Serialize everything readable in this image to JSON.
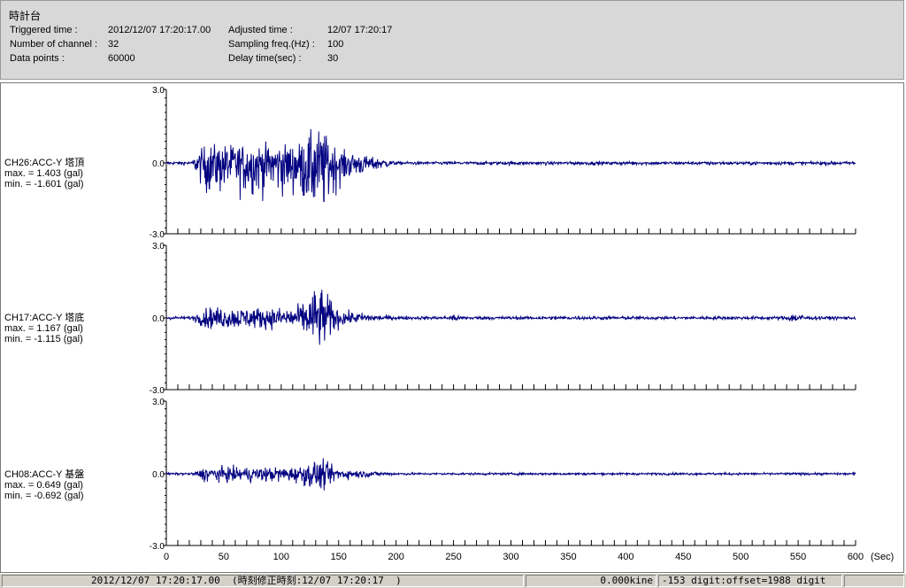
{
  "window_title": "時計台",
  "header": {
    "triggered_label": "Triggered time :",
    "triggered_value": "2012/12/07 17:20:17.00",
    "channels_label": "Number of channel :",
    "channels_value": "32",
    "points_label": "Data points :",
    "points_value": "60000",
    "adjusted_label": "Adjusted time :",
    "adjusted_value": "12/07 17:20:17",
    "sampling_label": "Sampling freq.(Hz) :",
    "sampling_value": "100",
    "delay_label": "Delay time(sec) :",
    "delay_value": "30"
  },
  "chart_data": {
    "type": "line",
    "x_unit_label": "(Sec)",
    "xlim": [
      0,
      600
    ],
    "x_ticks": [
      "0",
      "50",
      "100",
      "150",
      "200",
      "250",
      "300",
      "350",
      "400",
      "450",
      "500",
      "550",
      "600"
    ],
    "y_tick_labels": [
      "3.0",
      "0.0",
      "-3.0"
    ],
    "ylim": [
      -3.0,
      3.0
    ],
    "color": "#000080",
    "series": [
      {
        "name": "CH26:ACC-Y 塔頂",
        "max_text": "max. = 1.403 (gal)",
        "min_text": "min. = -1.601 (gal)",
        "max": 1.403,
        "min": -1.601
      },
      {
        "name": "CH17:ACC-Y 塔底",
        "max_text": "max. = 1.167 (gal)",
        "min_text": "min. = -1.115 (gal)",
        "max": 1.167,
        "min": -1.115
      },
      {
        "name": "CH08:ACC-Y 基盤",
        "max_text": "max. = 0.649 (gal)",
        "min_text": "min. = -0.692 (gal)",
        "max": 0.649,
        "min": -0.692
      }
    ]
  },
  "status": {
    "time": "2012/12/07 17:20:17.00  (時刻修正時刻:12/07 17:20:17  )",
    "kine": "0.000kine",
    "digit": "-153 digit:offset=1988 digit",
    "empty": ""
  }
}
